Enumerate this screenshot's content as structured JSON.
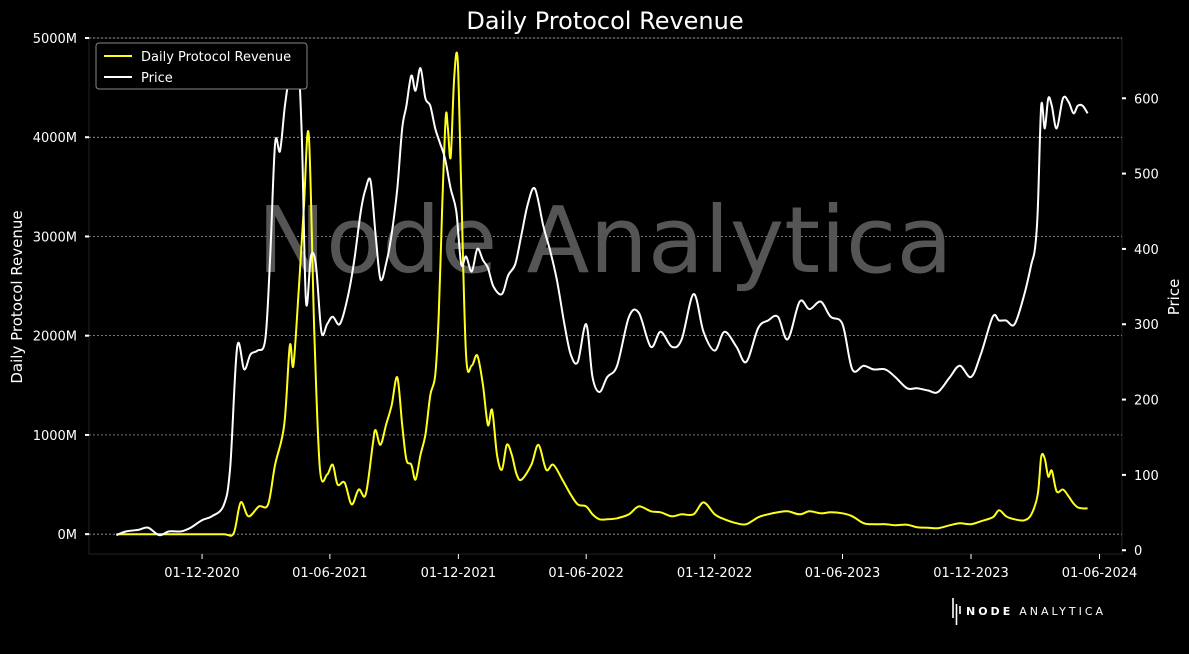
{
  "watermark": "Node Analytica",
  "brand": {
    "bold": "NODE",
    "light": "ANALYTICA"
  },
  "colors": {
    "background": "#000000",
    "revenue": "#ffff1a",
    "price": "#ffffff",
    "grid": "#bbbbbb",
    "watermark": "#555555"
  },
  "chart_data": {
    "type": "line",
    "title": "Daily Protocol Revenue",
    "ylabel": "Daily Protocol Revenue",
    "y2label": "Price",
    "ylim": [
      -200,
      5000
    ],
    "y2lim": [
      -5,
      680
    ],
    "xlim": [
      "2020-06-23",
      "2024-07-03"
    ],
    "xticks": [
      "2020-12-01",
      "2021-06-01",
      "2021-12-01",
      "2022-06-01",
      "2022-12-01",
      "2023-06-01",
      "2023-12-01",
      "2024-06-01"
    ],
    "xtick_labels": [
      "01-12-2020",
      "01-06-2021",
      "01-12-2021",
      "01-06-2022",
      "01-12-2022",
      "01-06-2023",
      "01-12-2023",
      "01-06-2024"
    ],
    "yticks": [
      0,
      1000,
      2000,
      3000,
      4000,
      5000
    ],
    "ytick_labels": [
      "0M",
      "1000M",
      "2000M",
      "3000M",
      "4000M",
      "5000M"
    ],
    "y2ticks": [
      0,
      100,
      200,
      300,
      400,
      500,
      600
    ],
    "y2tick_labels": [
      "0",
      "100",
      "200",
      "300",
      "400",
      "500",
      "600"
    ],
    "grid": true,
    "legend_position": "top-left",
    "series": [
      {
        "name": "Daily Protocol Revenue",
        "axis": "left",
        "points": [
          [
            "2020-08-01",
            0
          ],
          [
            "2020-10-01",
            0
          ],
          [
            "2020-12-01",
            0
          ],
          [
            "2021-01-01",
            0
          ],
          [
            "2021-01-15",
            10
          ],
          [
            "2021-01-25",
            320
          ],
          [
            "2021-02-05",
            180
          ],
          [
            "2021-02-20",
            280
          ],
          [
            "2021-03-05",
            300
          ],
          [
            "2021-03-15",
            700
          ],
          [
            "2021-03-28",
            1100
          ],
          [
            "2021-04-05",
            1900
          ],
          [
            "2021-04-10",
            1700
          ],
          [
            "2021-04-18",
            2500
          ],
          [
            "2021-04-25",
            3300
          ],
          [
            "2021-05-02",
            4020
          ],
          [
            "2021-05-10",
            2000
          ],
          [
            "2021-05-18",
            650
          ],
          [
            "2021-05-28",
            600
          ],
          [
            "2021-06-05",
            700
          ],
          [
            "2021-06-12",
            500
          ],
          [
            "2021-06-22",
            520
          ],
          [
            "2021-07-02",
            300
          ],
          [
            "2021-07-12",
            450
          ],
          [
            "2021-07-22",
            400
          ],
          [
            "2021-08-01",
            900
          ],
          [
            "2021-08-05",
            1050
          ],
          [
            "2021-08-12",
            900
          ],
          [
            "2021-08-20",
            1100
          ],
          [
            "2021-08-28",
            1300
          ],
          [
            "2021-09-05",
            1580
          ],
          [
            "2021-09-12",
            1100
          ],
          [
            "2021-09-18",
            750
          ],
          [
            "2021-09-25",
            700
          ],
          [
            "2021-10-01",
            550
          ],
          [
            "2021-10-08",
            800
          ],
          [
            "2021-10-15",
            1000
          ],
          [
            "2021-10-22",
            1400
          ],
          [
            "2021-10-29",
            1600
          ],
          [
            "2021-11-03",
            2200
          ],
          [
            "2021-11-08",
            3300
          ],
          [
            "2021-11-13",
            4200
          ],
          [
            "2021-11-16",
            4100
          ],
          [
            "2021-11-20",
            3800
          ],
          [
            "2021-11-25",
            4600
          ],
          [
            "2021-11-30",
            4780
          ],
          [
            "2021-12-05",
            3500
          ],
          [
            "2021-12-12",
            1800
          ],
          [
            "2021-12-20",
            1700
          ],
          [
            "2021-12-28",
            1800
          ],
          [
            "2022-01-05",
            1500
          ],
          [
            "2022-01-12",
            1100
          ],
          [
            "2022-01-18",
            1250
          ],
          [
            "2022-01-25",
            800
          ],
          [
            "2022-02-01",
            650
          ],
          [
            "2022-02-08",
            900
          ],
          [
            "2022-02-15",
            800
          ],
          [
            "2022-02-22",
            600
          ],
          [
            "2022-03-01",
            550
          ],
          [
            "2022-03-15",
            700
          ],
          [
            "2022-03-25",
            900
          ],
          [
            "2022-04-05",
            650
          ],
          [
            "2022-04-15",
            700
          ],
          [
            "2022-04-28",
            550
          ],
          [
            "2022-05-10",
            400
          ],
          [
            "2022-05-20",
            300
          ],
          [
            "2022-06-01",
            280
          ],
          [
            "2022-06-10",
            200
          ],
          [
            "2022-06-20",
            150
          ],
          [
            "2022-07-01",
            150
          ],
          [
            "2022-07-15",
            160
          ],
          [
            "2022-08-01",
            200
          ],
          [
            "2022-08-15",
            280
          ],
          [
            "2022-09-01",
            230
          ],
          [
            "2022-09-15",
            220
          ],
          [
            "2022-10-01",
            180
          ],
          [
            "2022-10-15",
            200
          ],
          [
            "2022-11-01",
            200
          ],
          [
            "2022-11-15",
            320
          ],
          [
            "2022-12-01",
            200
          ],
          [
            "2022-12-15",
            150
          ],
          [
            "2023-01-01",
            110
          ],
          [
            "2023-01-15",
            100
          ],
          [
            "2023-02-01",
            170
          ],
          [
            "2023-02-15",
            200
          ],
          [
            "2023-03-01",
            220
          ],
          [
            "2023-03-15",
            230
          ],
          [
            "2023-04-01",
            200
          ],
          [
            "2023-04-15",
            230
          ],
          [
            "2023-05-01",
            210
          ],
          [
            "2023-05-15",
            220
          ],
          [
            "2023-06-01",
            210
          ],
          [
            "2023-06-15",
            180
          ],
          [
            "2023-07-01",
            110
          ],
          [
            "2023-07-15",
            100
          ],
          [
            "2023-08-01",
            100
          ],
          [
            "2023-08-15",
            90
          ],
          [
            "2023-09-01",
            95
          ],
          [
            "2023-09-15",
            70
          ],
          [
            "2023-10-01",
            65
          ],
          [
            "2023-10-15",
            60
          ],
          [
            "2023-11-01",
            90
          ],
          [
            "2023-11-15",
            110
          ],
          [
            "2023-12-01",
            100
          ],
          [
            "2023-12-15",
            130
          ],
          [
            "2024-01-01",
            170
          ],
          [
            "2024-01-10",
            240
          ],
          [
            "2024-01-20",
            180
          ],
          [
            "2024-02-01",
            150
          ],
          [
            "2024-02-15",
            140
          ],
          [
            "2024-02-25",
            200
          ],
          [
            "2024-03-05",
            400
          ],
          [
            "2024-03-10",
            780
          ],
          [
            "2024-03-15",
            760
          ],
          [
            "2024-03-20",
            580
          ],
          [
            "2024-03-25",
            640
          ],
          [
            "2024-04-01",
            430
          ],
          [
            "2024-04-10",
            450
          ],
          [
            "2024-04-18",
            380
          ],
          [
            "2024-04-25",
            310
          ],
          [
            "2024-05-01",
            270
          ],
          [
            "2024-05-08",
            260
          ],
          [
            "2024-05-15",
            260
          ]
        ]
      },
      {
        "name": "Price",
        "axis": "right",
        "points": [
          [
            "2020-08-01",
            20
          ],
          [
            "2020-08-15",
            25
          ],
          [
            "2020-09-01",
            27
          ],
          [
            "2020-09-15",
            30
          ],
          [
            "2020-10-01",
            20
          ],
          [
            "2020-10-15",
            25
          ],
          [
            "2020-11-01",
            25
          ],
          [
            "2020-11-15",
            30
          ],
          [
            "2020-12-01",
            40
          ],
          [
            "2020-12-15",
            45
          ],
          [
            "2021-01-01",
            60
          ],
          [
            "2021-01-10",
            110
          ],
          [
            "2021-01-20",
            270
          ],
          [
            "2021-01-30",
            240
          ],
          [
            "2021-02-08",
            260
          ],
          [
            "2021-02-18",
            265
          ],
          [
            "2021-03-01",
            280
          ],
          [
            "2021-03-08",
            390
          ],
          [
            "2021-03-15",
            540
          ],
          [
            "2021-03-22",
            530
          ],
          [
            "2021-03-29",
            590
          ],
          [
            "2021-04-05",
            630
          ],
          [
            "2021-04-12",
            620
          ],
          [
            "2021-04-16",
            660
          ],
          [
            "2021-04-22",
            550
          ],
          [
            "2021-04-28",
            330
          ],
          [
            "2021-05-05",
            390
          ],
          [
            "2021-05-12",
            380
          ],
          [
            "2021-05-20",
            290
          ],
          [
            "2021-05-28",
            300
          ],
          [
            "2021-06-05",
            310
          ],
          [
            "2021-06-15",
            300
          ],
          [
            "2021-06-25",
            330
          ],
          [
            "2021-07-05",
            380
          ],
          [
            "2021-07-15",
            450
          ],
          [
            "2021-07-22",
            480
          ],
          [
            "2021-07-29",
            490
          ],
          [
            "2021-08-05",
            420
          ],
          [
            "2021-08-12",
            360
          ],
          [
            "2021-08-20",
            380
          ],
          [
            "2021-08-28",
            420
          ],
          [
            "2021-09-05",
            480
          ],
          [
            "2021-09-12",
            560
          ],
          [
            "2021-09-18",
            590
          ],
          [
            "2021-09-25",
            630
          ],
          [
            "2021-10-01",
            610
          ],
          [
            "2021-10-08",
            640
          ],
          [
            "2021-10-15",
            600
          ],
          [
            "2021-10-22",
            590
          ],
          [
            "2021-10-29",
            560
          ],
          [
            "2021-11-05",
            540
          ],
          [
            "2021-11-12",
            520
          ],
          [
            "2021-11-20",
            480
          ],
          [
            "2021-11-28",
            450
          ],
          [
            "2021-12-05",
            380
          ],
          [
            "2021-12-12",
            390
          ],
          [
            "2021-12-20",
            370
          ],
          [
            "2021-12-28",
            400
          ],
          [
            "2022-01-05",
            385
          ],
          [
            "2022-01-12",
            375
          ],
          [
            "2022-01-20",
            350
          ],
          [
            "2022-02-01",
            340
          ],
          [
            "2022-02-10",
            365
          ],
          [
            "2022-02-20",
            380
          ],
          [
            "2022-03-01",
            420
          ],
          [
            "2022-03-10",
            460
          ],
          [
            "2022-03-20",
            480
          ],
          [
            "2022-04-01",
            430
          ],
          [
            "2022-04-10",
            400
          ],
          [
            "2022-04-20",
            360
          ],
          [
            "2022-05-01",
            300
          ],
          [
            "2022-05-10",
            260
          ],
          [
            "2022-05-20",
            250
          ],
          [
            "2022-06-01",
            300
          ],
          [
            "2022-06-10",
            230
          ],
          [
            "2022-06-20",
            210
          ],
          [
            "2022-07-01",
            230
          ],
          [
            "2022-07-15",
            245
          ],
          [
            "2022-08-01",
            310
          ],
          [
            "2022-08-15",
            315
          ],
          [
            "2022-09-01",
            270
          ],
          [
            "2022-09-15",
            290
          ],
          [
            "2022-10-01",
            270
          ],
          [
            "2022-10-15",
            280
          ],
          [
            "2022-11-01",
            340
          ],
          [
            "2022-11-15",
            290
          ],
          [
            "2022-12-01",
            265
          ],
          [
            "2022-12-15",
            290
          ],
          [
            "2023-01-01",
            270
          ],
          [
            "2023-01-15",
            250
          ],
          [
            "2023-02-01",
            295
          ],
          [
            "2023-02-15",
            305
          ],
          [
            "2023-03-01",
            310
          ],
          [
            "2023-03-15",
            280
          ],
          [
            "2023-04-01",
            330
          ],
          [
            "2023-04-15",
            320
          ],
          [
            "2023-05-01",
            330
          ],
          [
            "2023-05-15",
            310
          ],
          [
            "2023-06-01",
            300
          ],
          [
            "2023-06-15",
            240
          ],
          [
            "2023-07-01",
            245
          ],
          [
            "2023-07-15",
            240
          ],
          [
            "2023-08-01",
            240
          ],
          [
            "2023-08-15",
            230
          ],
          [
            "2023-09-01",
            215
          ],
          [
            "2023-09-15",
            215
          ],
          [
            "2023-10-01",
            212
          ],
          [
            "2023-10-15",
            210
          ],
          [
            "2023-11-01",
            230
          ],
          [
            "2023-11-15",
            245
          ],
          [
            "2023-12-01",
            230
          ],
          [
            "2023-12-15",
            260
          ],
          [
            "2024-01-01",
            310
          ],
          [
            "2024-01-10",
            305
          ],
          [
            "2024-01-20",
            305
          ],
          [
            "2024-02-01",
            300
          ],
          [
            "2024-02-15",
            340
          ],
          [
            "2024-02-25",
            380
          ],
          [
            "2024-03-01",
            400
          ],
          [
            "2024-03-05",
            450
          ],
          [
            "2024-03-10",
            590
          ],
          [
            "2024-03-15",
            560
          ],
          [
            "2024-03-20",
            600
          ],
          [
            "2024-03-25",
            590
          ],
          [
            "2024-04-01",
            560
          ],
          [
            "2024-04-10",
            600
          ],
          [
            "2024-04-18",
            595
          ],
          [
            "2024-04-25",
            580
          ],
          [
            "2024-05-01",
            590
          ],
          [
            "2024-05-08",
            590
          ],
          [
            "2024-05-15",
            580
          ]
        ]
      }
    ]
  }
}
